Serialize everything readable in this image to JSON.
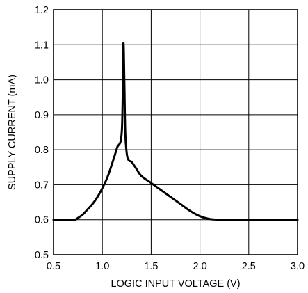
{
  "chart_data": {
    "type": "line",
    "title": "",
    "xlabel": "LOGIC INPUT VOLTAGE (V)",
    "ylabel": "SUPPLY CURRENT (mA)",
    "xlim": [
      0.5,
      3.0
    ],
    "ylim": [
      0.5,
      1.2
    ],
    "x_ticks": [
      0.5,
      1.0,
      1.5,
      2.0,
      2.5,
      3.0
    ],
    "x_tick_labels": [
      "0.5",
      "1.0",
      "1.5",
      "2.0",
      "2.5",
      "3.0"
    ],
    "y_ticks": [
      0.5,
      0.6,
      0.7,
      0.8,
      0.9,
      1.0,
      1.1,
      1.2
    ],
    "y_tick_labels": [
      "0.5",
      "0.6",
      "0.7",
      "0.8",
      "0.9",
      "1.0",
      "1.1",
      "1.2"
    ],
    "grid": true,
    "legend": "none",
    "series": [
      {
        "x": [
          0.5,
          0.7,
          0.75,
          0.8,
          0.85,
          0.9,
          0.95,
          1.0,
          1.05,
          1.1,
          1.15,
          1.2,
          1.215,
          1.225,
          1.235,
          1.25,
          1.27,
          1.3,
          1.35,
          1.4,
          1.5,
          1.6,
          1.7,
          1.8,
          1.9,
          2.0,
          2.1,
          2.2,
          2.25,
          2.5,
          3.0
        ],
        "y": [
          0.6,
          0.6,
          0.605,
          0.615,
          0.63,
          0.645,
          0.665,
          0.69,
          0.72,
          0.76,
          0.805,
          0.855,
          1.1,
          1.0,
          0.85,
          0.79,
          0.77,
          0.765,
          0.745,
          0.725,
          0.705,
          0.685,
          0.665,
          0.645,
          0.625,
          0.61,
          0.602,
          0.6,
          0.6,
          0.6,
          0.6
        ]
      }
    ]
  }
}
